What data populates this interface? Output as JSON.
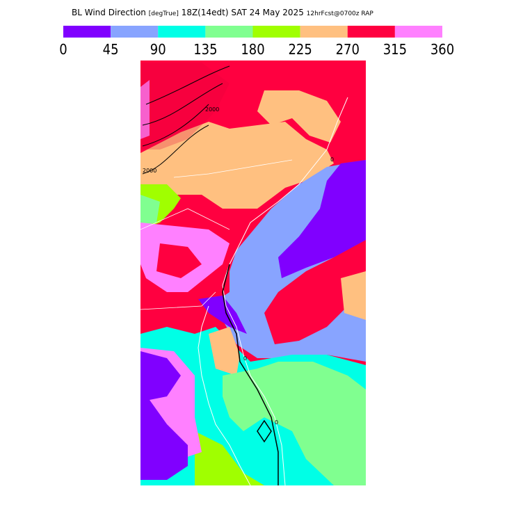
{
  "header": {
    "title": "BL Wind Direction",
    "units": "[degTrue]",
    "valid": "18Z(14edt) SAT 24 May 2025",
    "forecast": "12hrFcst@0700z RAP"
  },
  "colorbar": {
    "ticks": [
      0,
      45,
      90,
      135,
      180,
      225,
      270,
      315,
      360
    ],
    "colors": [
      "#8000ff",
      "#88a4ff",
      "#00ffe6",
      "#80ff90",
      "#a0ff00",
      "#ffc080",
      "#ff0040",
      "#ff80ff"
    ]
  },
  "contour_labels": [
    "2000",
    "2000",
    "0",
    "0",
    "0"
  ]
}
